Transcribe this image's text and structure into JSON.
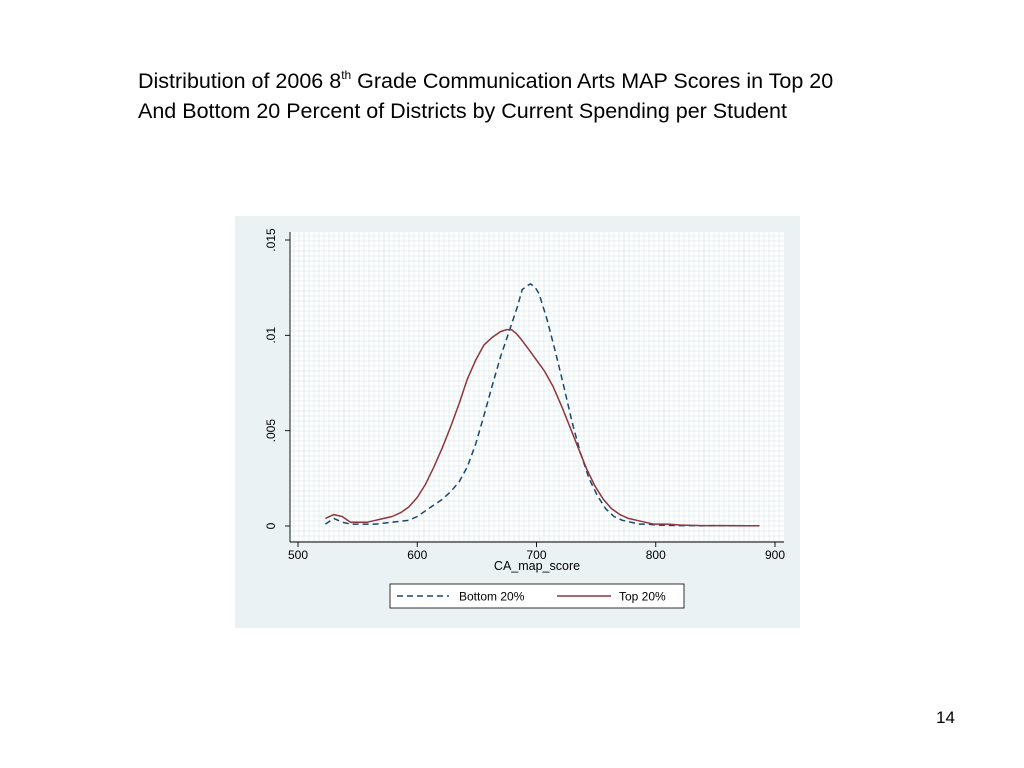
{
  "slide": {
    "title_line1_before": "Distribution of 2006 8",
    "title_sup": "th",
    "title_line1_after": " Grade Communication Arts MAP Scores in Top 20",
    "title_line2": "And Bottom 20 Percent of Districts by Current Spending per Student",
    "page_number": "14"
  },
  "colors": {
    "panel_background": "#eaf2f3",
    "plot_background": "#ffffff",
    "grid": "#d4e4e6",
    "bottom_series": "#1a476f",
    "top_series": "#90353b"
  },
  "chart_data": {
    "type": "line",
    "title": "",
    "xlabel": "CA_map_score",
    "ylabel": "",
    "xlim": [
      500,
      900
    ],
    "ylim": [
      0,
      0.015
    ],
    "x_ticks": [
      500,
      600,
      700,
      800,
      900
    ],
    "x_tick_labels": [
      "500",
      "600",
      "700",
      "800",
      "900"
    ],
    "y_ticks": [
      0,
      0.005,
      0.01,
      0.015
    ],
    "y_tick_labels": [
      "0",
      ".005",
      ".01",
      ".015"
    ],
    "grid": true,
    "legend_position": "bottom",
    "series": [
      {
        "name": "Bottom 20%",
        "style": "dashed",
        "color": "#1a476f",
        "x": [
          523,
          530,
          537,
          544,
          551,
          558,
          565,
          572,
          579,
          586,
          593,
          600,
          607,
          614,
          621,
          628,
          635,
          642,
          649,
          656,
          663,
          670,
          677,
          684,
          688,
          692,
          695,
          699,
          702,
          705,
          709,
          716,
          723,
          730,
          737,
          744,
          751,
          758,
          765,
          772,
          779,
          786,
          793,
          800,
          810,
          820,
          830,
          840,
          850,
          860,
          870,
          880,
          887
        ],
        "y": [
          0.0001,
          0.0004,
          0.0002,
          0.0001,
          0.0001,
          0.0001,
          0.0001,
          0.00015,
          0.0002,
          0.00025,
          0.0003,
          0.0005,
          0.0008,
          0.0011,
          0.0014,
          0.0018,
          0.0023,
          0.0031,
          0.0043,
          0.0058,
          0.0074,
          0.0089,
          0.0102,
          0.0115,
          0.0124,
          0.0126,
          0.0127,
          0.0125,
          0.0122,
          0.0116,
          0.0108,
          0.0091,
          0.0073,
          0.0054,
          0.0038,
          0.0025,
          0.0016,
          0.0009,
          0.0005,
          0.0003,
          0.0002,
          0.0001,
          0.0001,
          5e-05,
          3e-05,
          2e-05,
          2e-05,
          1e-05,
          2e-05,
          1e-05,
          2e-05,
          1e-05,
          1e-05
        ]
      },
      {
        "name": "Top 20%",
        "style": "solid",
        "color": "#90353b",
        "x": [
          523,
          530,
          537,
          544,
          551,
          558,
          565,
          572,
          579,
          586,
          593,
          600,
          607,
          614,
          621,
          628,
          635,
          642,
          649,
          656,
          663,
          670,
          675,
          679,
          683,
          687,
          693,
          700,
          707,
          714,
          721,
          728,
          735,
          742,
          749,
          756,
          763,
          770,
          777,
          784,
          791,
          798,
          810,
          820,
          830,
          840,
          850,
          860,
          870,
          880,
          887
        ],
        "y": [
          0.0004,
          0.0006,
          0.0005,
          0.0002,
          0.0002,
          0.0002,
          0.0003,
          0.0004,
          0.0005,
          0.0007,
          0.001,
          0.0015,
          0.0022,
          0.0031,
          0.0041,
          0.0052,
          0.0064,
          0.0077,
          0.0087,
          0.0095,
          0.0099,
          0.0102,
          0.0103,
          0.0103,
          0.0101,
          0.0098,
          0.0093,
          0.0087,
          0.0081,
          0.0073,
          0.0063,
          0.0052,
          0.0041,
          0.003,
          0.0021,
          0.0014,
          0.0009,
          0.0006,
          0.0004,
          0.0003,
          0.0002,
          0.0001,
          0.0001,
          5e-05,
          3e-05,
          2e-05,
          2e-05,
          2e-05,
          1e-05,
          1e-05,
          1e-05
        ]
      }
    ]
  }
}
